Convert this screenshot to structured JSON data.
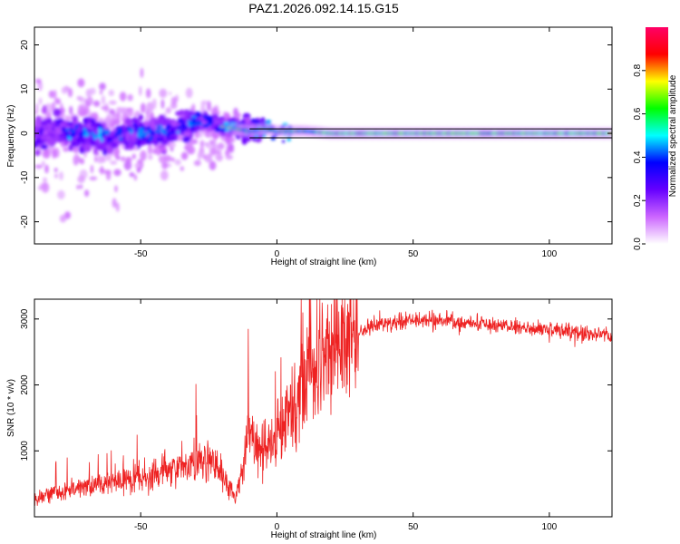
{
  "title": "PAZ1.2026.092.14.15.G15",
  "chart_data": [
    {
      "type": "heatmap",
      "title": "PAZ1.2026.092.14.15.G15",
      "xlabel": "Height of straight line (km)",
      "ylabel": "Frequency (Hz)",
      "xlim": [
        -89,
        123
      ],
      "ylim": [
        -25,
        24
      ],
      "xticks": [
        -50,
        0,
        50,
        100
      ],
      "yticks": [
        -20,
        -10,
        0,
        10,
        20
      ],
      "colorbar": {
        "label": "Normalized spectral amplitude",
        "range": [
          0.0,
          1.0
        ],
        "ticks": [
          0.0,
          0.2,
          0.4,
          0.6,
          0.8
        ],
        "colors": [
          "#ffffff",
          "#cc66ff",
          "#6600ff",
          "#0000ff",
          "#00ffff",
          "#00ff00",
          "#ffff00",
          "#ff0000",
          "#ff0066"
        ]
      },
      "ridge_curve": {
        "x": [
          -89,
          -80,
          -70,
          -60,
          -50,
          -45,
          -40,
          -35,
          -30,
          -25,
          -20,
          -15,
          -10,
          -5,
          0,
          5,
          10,
          20,
          30,
          50,
          80,
          110,
          123
        ],
        "y": [
          0,
          0,
          0,
          -0.5,
          0,
          0.5,
          0.5,
          1.5,
          3,
          2.5,
          1.5,
          1.0,
          0.5,
          1.0,
          0.5,
          0.5,
          0.5,
          0,
          0,
          0,
          0,
          0,
          0
        ]
      },
      "reference_lines_y": [
        1,
        -1
      ]
    },
    {
      "type": "line",
      "xlabel": "Height of straight line (km)",
      "ylabel": "SNR (10 * v/v)",
      "xlim": [
        -89,
        123
      ],
      "ylim": [
        0,
        3300
      ],
      "xticks": [
        -50,
        0,
        50,
        100
      ],
      "yticks": [
        1000,
        2000,
        3000
      ],
      "series": [
        {
          "color": "#ee2222",
          "x": [
            -89,
            -85,
            -80,
            -75,
            -70,
            -65,
            -60,
            -55,
            -50,
            -45,
            -40,
            -35,
            -30,
            -25,
            -20,
            -15,
            -12,
            -10,
            -5,
            0,
            5,
            8,
            10,
            15,
            20,
            25,
            30,
            35,
            40,
            45,
            50,
            55,
            60,
            65,
            70,
            75,
            80,
            85,
            90,
            95,
            100,
            105,
            110,
            115,
            120,
            123
          ],
          "y": [
            250,
            350,
            380,
            420,
            450,
            480,
            520,
            560,
            600,
            650,
            700,
            750,
            800,
            850,
            600,
            300,
            900,
            1300,
            1000,
            1200,
            1600,
            1650,
            2200,
            2250,
            2450,
            2600,
            2800,
            2900,
            2950,
            2950,
            2970,
            2980,
            2980,
            2960,
            2950,
            2930,
            2900,
            2890,
            2850,
            2860,
            2850,
            2830,
            2790,
            2780,
            2760,
            2740
          ]
        }
      ]
    }
  ]
}
